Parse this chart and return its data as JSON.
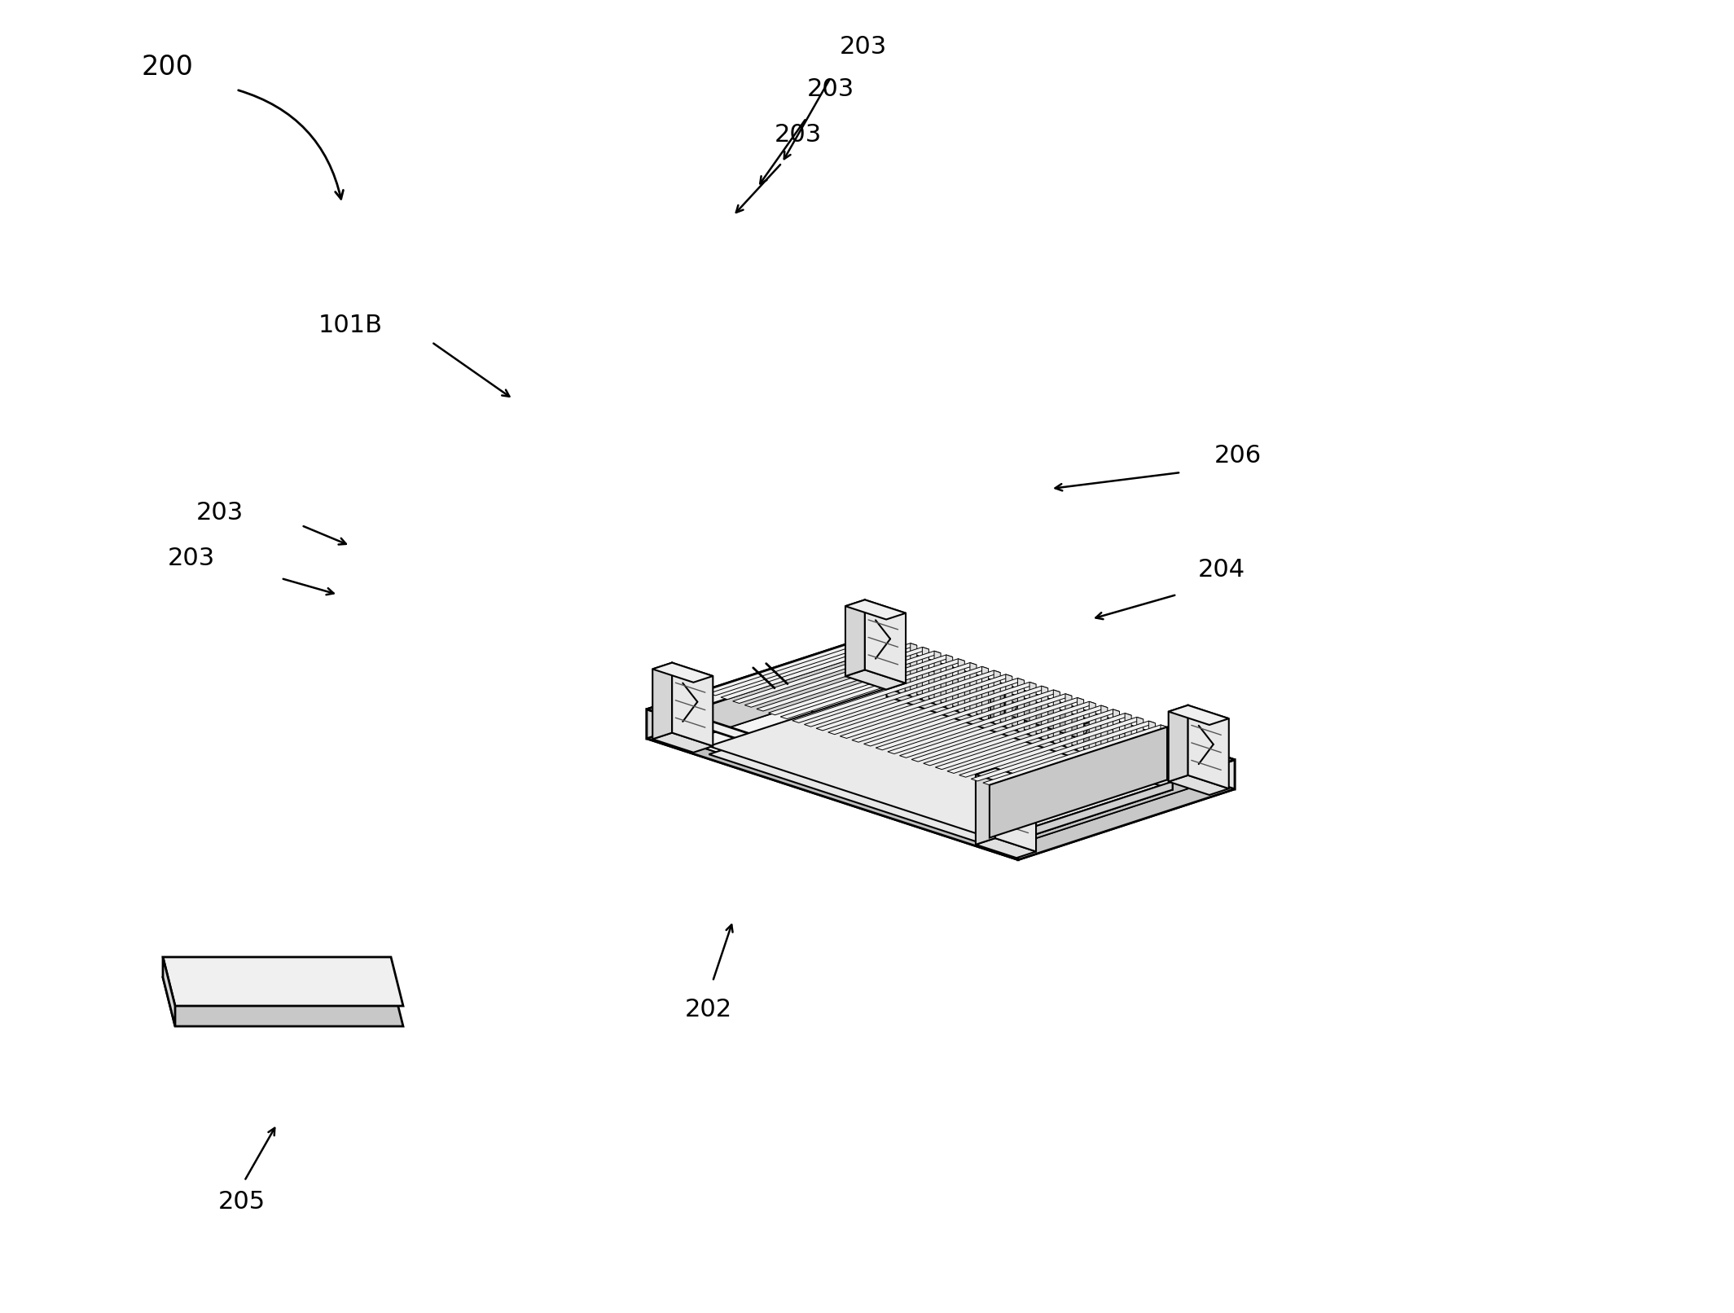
{
  "bg_color": "#ffffff",
  "line_color": "#000000",
  "lw_main": 2.0,
  "lw_thin": 1.2,
  "lw_thick": 2.8,
  "figsize": [
    21.29,
    16.12
  ],
  "dpi": 100,
  "font_size": 22,
  "face_light": "#f5f5f5",
  "face_mid": "#e0e0e0",
  "face_dark": "#c8c8c8",
  "face_white": "#fafafa",
  "face_inner": "#eeeeee"
}
